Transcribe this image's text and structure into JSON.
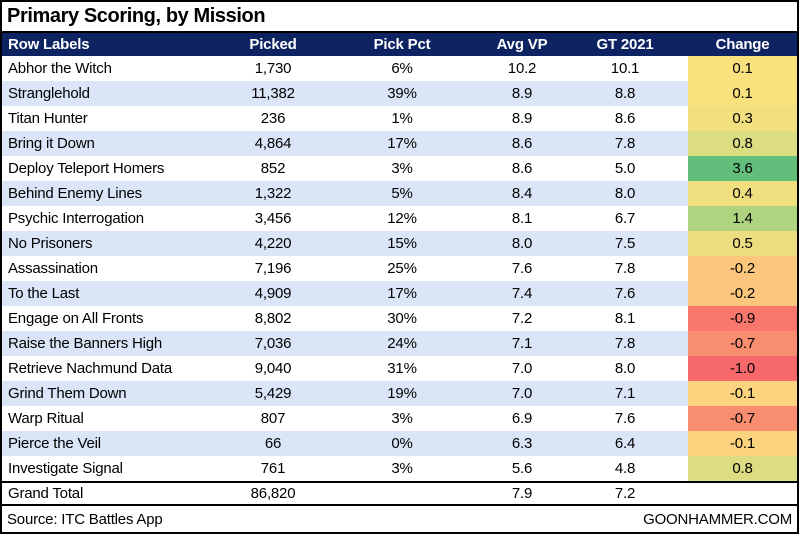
{
  "title": "Primary Scoring, by Mission",
  "source_note": "Source: ITC Battles App",
  "site_credit": "GOONHAMMER.COM",
  "colors": {
    "header_bg": "#0e2362",
    "header_text": "#ffffff",
    "row_stripe": "#dae5f7",
    "border": "#000000",
    "scale_min_red": "#f8696b",
    "scale_mid_yellow": "#ffe784",
    "scale_max_green": "#63be7b"
  },
  "chart_data": {
    "type": "table",
    "title": "Primary Scoring, by Mission",
    "columns": [
      "Row Labels",
      "Picked",
      "Pick Pct",
      "Avg VP",
      "GT 2021",
      "Change"
    ],
    "rows": [
      {
        "mission": "Abhor the Witch",
        "picked": "1,730",
        "pick_pct": "6%",
        "avg_vp": "10.2",
        "gt_2021": "10.1",
        "change": "0.1",
        "change_color": "#f9e27d"
      },
      {
        "mission": "Stranglehold",
        "picked": "11,382",
        "pick_pct": "39%",
        "avg_vp": "8.9",
        "gt_2021": "8.8",
        "change": "0.1",
        "change_color": "#f9e27d"
      },
      {
        "mission": "Titan Hunter",
        "picked": "236",
        "pick_pct": "1%",
        "avg_vp": "8.9",
        "gt_2021": "8.6",
        "change": "0.3",
        "change_color": "#f2e07e"
      },
      {
        "mission": "Bring it Down",
        "picked": "4,864",
        "pick_pct": "17%",
        "avg_vp": "8.6",
        "gt_2021": "7.8",
        "change": "0.8",
        "change_color": "#dcdc82"
      },
      {
        "mission": "Deploy Teleport Homers",
        "picked": "852",
        "pick_pct": "3%",
        "avg_vp": "8.6",
        "gt_2021": "5.0",
        "change": "3.6",
        "change_color": "#63be7b"
      },
      {
        "mission": "Behind Enemy Lines",
        "picked": "1,322",
        "pick_pct": "5%",
        "avg_vp": "8.4",
        "gt_2021": "8.0",
        "change": "0.4",
        "change_color": "#efdf7f"
      },
      {
        "mission": "Psychic Interrogation",
        "picked": "3,456",
        "pick_pct": "12%",
        "avg_vp": "8.1",
        "gt_2021": "6.7",
        "change": "1.4",
        "change_color": "#aed47f"
      },
      {
        "mission": "No Prisoners",
        "picked": "4,220",
        "pick_pct": "15%",
        "avg_vp": "8.0",
        "gt_2021": "7.5",
        "change": "0.5",
        "change_color": "#ecde80"
      },
      {
        "mission": "Assassination",
        "picked": "7,196",
        "pick_pct": "25%",
        "avg_vp": "7.6",
        "gt_2021": "7.8",
        "change": "-0.2",
        "change_color": "#fcc77d"
      },
      {
        "mission": "To the Last",
        "picked": "4,909",
        "pick_pct": "17%",
        "avg_vp": "7.4",
        "gt_2021": "7.6",
        "change": "-0.2",
        "change_color": "#fcc77d"
      },
      {
        "mission": "Engage on All Fronts",
        "picked": "8,802",
        "pick_pct": "30%",
        "avg_vp": "7.2",
        "gt_2021": "8.1",
        "change": "-0.9",
        "change_color": "#f8766c"
      },
      {
        "mission": "Raise the Banners High",
        "picked": "7,036",
        "pick_pct": "24%",
        "avg_vp": "7.1",
        "gt_2021": "7.8",
        "change": "-0.7",
        "change_color": "#f98d70"
      },
      {
        "mission": "Retrieve Nachmund Data",
        "picked": "9,040",
        "pick_pct": "31%",
        "avg_vp": "7.0",
        "gt_2021": "8.0",
        "change": "-1.0",
        "change_color": "#f8696b"
      },
      {
        "mission": "Grind Them Down",
        "picked": "5,429",
        "pick_pct": "19%",
        "avg_vp": "7.0",
        "gt_2021": "7.1",
        "change": "-0.1",
        "change_color": "#fcd37e"
      },
      {
        "mission": "Warp Ritual",
        "picked": "807",
        "pick_pct": "3%",
        "avg_vp": "6.9",
        "gt_2021": "7.6",
        "change": "-0.7",
        "change_color": "#f98d70"
      },
      {
        "mission": "Pierce the Veil",
        "picked": "66",
        "pick_pct": "0%",
        "avg_vp": "6.3",
        "gt_2021": "6.4",
        "change": "-0.1",
        "change_color": "#fcd37e"
      },
      {
        "mission": "Investigate Signal",
        "picked": "761",
        "pick_pct": "3%",
        "avg_vp": "5.6",
        "gt_2021": "4.8",
        "change": "0.8",
        "change_color": "#dcdc82"
      }
    ],
    "grand_total": {
      "label": "Grand Total",
      "picked": "86,820",
      "pick_pct": "",
      "avg_vp": "7.9",
      "gt_2021": "7.2",
      "change": ""
    }
  }
}
